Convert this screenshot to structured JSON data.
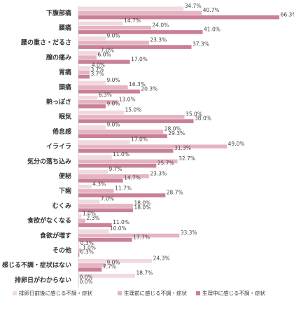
{
  "chart_data": {
    "type": "bar",
    "orientation": "horizontal",
    "categories": [
      "下腹部痛",
      "腰痛",
      "腰の重さ・だるさ",
      "膣の痛み",
      "胃痛",
      "頭痛",
      "熱っぽさ",
      "眠気",
      "倦怠感",
      "イライラ",
      "気分の落ち込み",
      "便秘",
      "下痢",
      "むくみ",
      "食欲がなくなる",
      "食欲が増す",
      "その他",
      "感じる不調・症状はない",
      "排卵日がわからない"
    ],
    "series": [
      {
        "name": "排卵日前後に感じる不調・症状",
        "color": "#f0d9df",
        "values": [
          34.7,
          14.7,
          9.0,
          7.0,
          4.0,
          9.0,
          6.3,
          15.0,
          9.0,
          17.0,
          11.0,
          9.7,
          4.3,
          7.0,
          1.0,
          10.0,
          0.3,
          24.3,
          18.7
        ],
        "value_labels": [
          "34.7%",
          "14.7%",
          "9.0%",
          "7.0%",
          "4.0%",
          "9.0%",
          "6.3%",
          "15.0%",
          "9.0%",
          "17.0%",
          "11.0%",
          "9.7%",
          "4.3%",
          "7.0%",
          "1.0%",
          "10.0%",
          "0.3%",
          "24.3%",
          "18.7%"
        ]
      },
      {
        "name": "生理前に感じる不調・症状",
        "color": "#e5b4c1",
        "values": [
          40.7,
          24.0,
          23.3,
          6.0,
          3.7,
          16.3,
          13.0,
          35.0,
          28.0,
          49.0,
          32.7,
          23.3,
          11.7,
          18.0,
          2.3,
          33.3,
          1.0,
          9.0,
          0.0
        ],
        "value_labels": [
          "40.7%",
          "24.0%",
          "23.3%",
          "6.0%",
          "3.7%",
          "16.3%",
          "13.0%",
          "35.0%",
          "28.0%",
          "49.0%",
          "32.7%",
          "23.3%",
          "11.7%",
          "18.0%",
          "2.3%",
          "33.3%",
          "1.0%",
          "9.0%",
          "0.0%"
        ]
      },
      {
        "name": "生理中に感じる不調・症状",
        "color": "#c98095",
        "values": [
          66.3,
          41.0,
          37.3,
          17.0,
          3.7,
          20.3,
          9.0,
          38.0,
          29.3,
          31.3,
          25.7,
          14.7,
          28.7,
          18.0,
          11.0,
          17.7,
          0.3,
          7.7,
          0.0
        ],
        "value_labels": [
          "66.3%",
          "41.0%",
          "37.3%",
          "17.0%",
          "3.7%",
          "20.3%",
          "9.0%",
          "38.0%",
          "29.3%",
          "31.3%",
          "25.7%",
          "14.7%",
          "28.7%",
          "18.0%",
          "11.0%",
          "17.7%",
          "0.3%",
          "7.7%",
          "0.0%"
        ]
      }
    ]
  }
}
